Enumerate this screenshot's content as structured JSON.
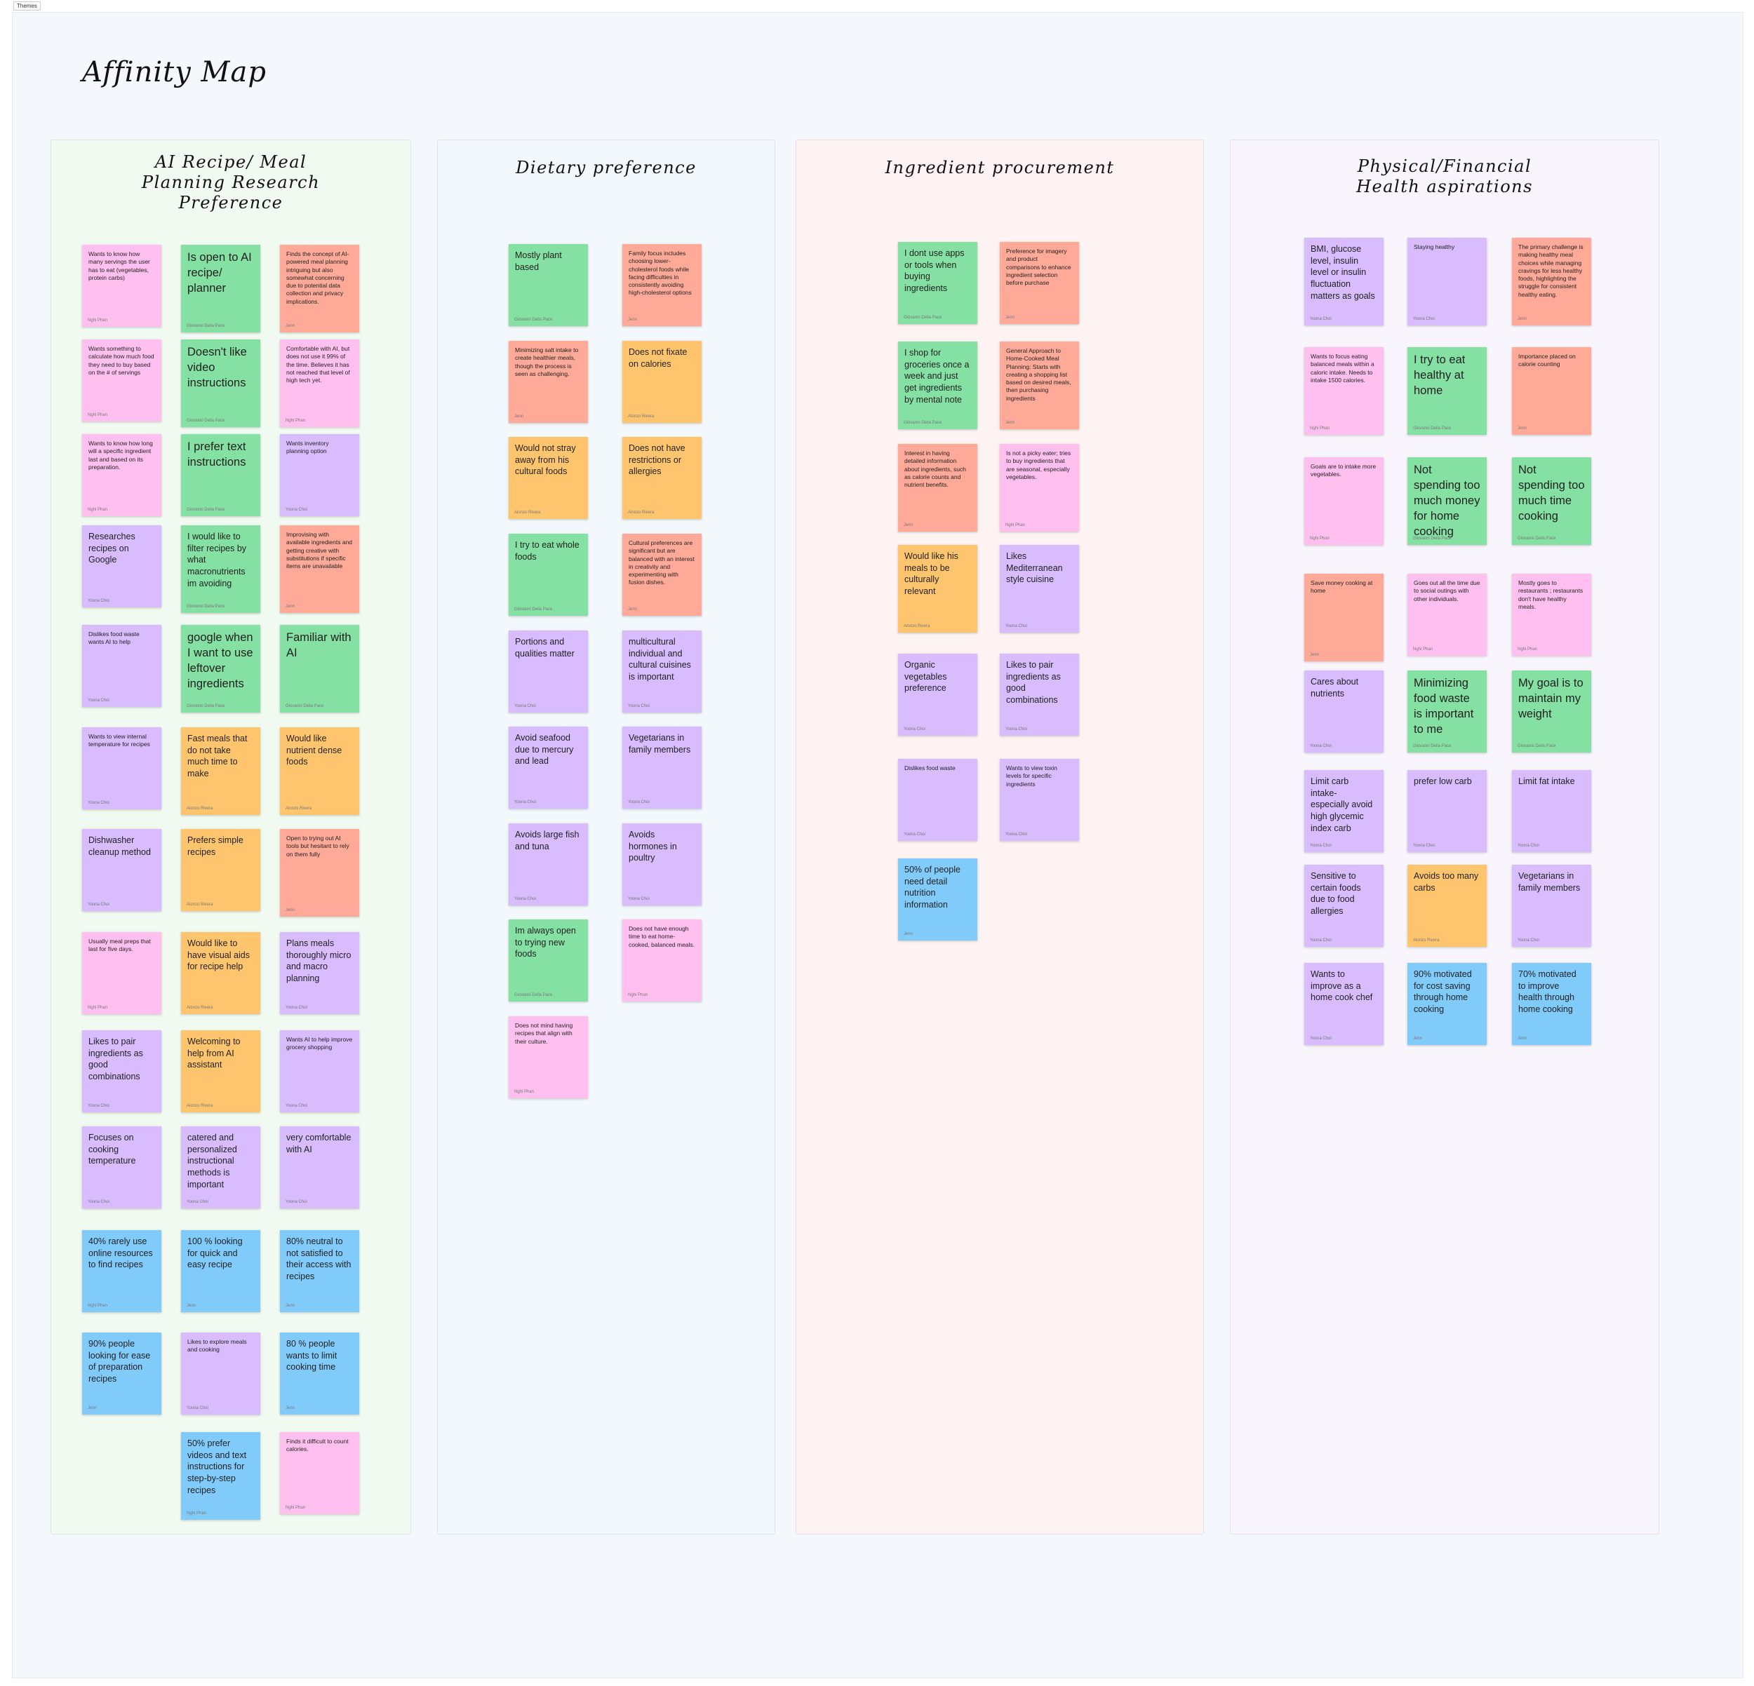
{
  "frame_label": "Themes",
  "page_title": "Affinity Map",
  "colors": {
    "pink": "#ffc0f0",
    "green": "#85e0a3",
    "purple": "#d9bcfd",
    "salmon": "#ffaa98",
    "orange": "#ffc56e",
    "blue": "#81cbfb"
  },
  "sections": [
    {
      "title": "AI Recipe/ Meal\nPlanning Research\nPreference",
      "notes": [
        {
          "text": "Wants to know how many servings the user has to eat (vegetables, protein carbs)",
          "author": "Nghi Phan",
          "color": "pink"
        },
        {
          "text": "Is open to AI recipe/ planner",
          "author": "Giovanni Della Pace",
          "color": "green"
        },
        {
          "text": "Finds the concept of AI-powered meal planning intriguing but also somewhat concerning due to potential data collection and privacy implications.",
          "author": "Jenn",
          "color": "salmon"
        },
        {
          "text": "Wants something to calculate how much food they need to buy based on the # of servings",
          "author": "Nghi Phan",
          "color": "pink"
        },
        {
          "text": "Doesn't like video instructions",
          "author": "Giovanni Della Pace",
          "color": "green"
        },
        {
          "text": "Comfortable with AI, but does not use it 99% of the time. Believes it has not reached that level of high tech yet.",
          "author": "Nghi Phan",
          "color": "pink"
        },
        {
          "text": "Wants to know how long will a specific ingredient last and based on its preparation.",
          "author": "Nghi Phan",
          "color": "pink"
        },
        {
          "text": "I prefer text instructions",
          "author": "Giovanni Della Pace",
          "color": "green"
        },
        {
          "text": "Wants inventory planning option",
          "author": "Yoona Choi",
          "color": "purple"
        },
        {
          "text": "Researches recipes on Google",
          "author": "Yoona Choi",
          "color": "purple"
        },
        {
          "text": "I would like to filter recipes by what macronutrients im avoiding",
          "author": "Giovanni Della Pace",
          "color": "green"
        },
        {
          "text": "Improvising with available ingredients and getting creative with substitutions if specific items are unavailable",
          "author": "Jenn",
          "color": "salmon"
        },
        {
          "text": "Dislikes food waste wants AI to help",
          "author": "Yoona Choi",
          "color": "purple"
        },
        {
          "text": "google  when I want to use leftover ingredients",
          "author": "Giovanni Della Pace",
          "color": "green"
        },
        {
          "text": "Familiar with AI",
          "author": "Giovanni Della Pace",
          "color": "green"
        },
        {
          "text": "Wants to view internal temperature for recipes",
          "author": "Yoona Choi",
          "color": "purple"
        },
        {
          "text": "Fast meals that do not take much time to make",
          "author": "Alonzo Rivera",
          "color": "orange"
        },
        {
          "text": "Would like nutrient dense foods",
          "author": "Alonzo Rivera",
          "color": "orange"
        },
        {
          "text": "Dishwasher cleanup method",
          "author": "Yoona Choi",
          "color": "purple"
        },
        {
          "text": "Prefers simple recipes",
          "author": "Alonzo Rivera",
          "color": "orange"
        },
        {
          "text": "Open to trying out  AI tools but hesitant to rely on them fully",
          "author": "Jenn",
          "color": "salmon"
        },
        {
          "text": "Usually meal preps that last for five days.",
          "author": "Nghi Phan",
          "color": "pink"
        },
        {
          "text": "Would like to have visual aids for recipe help",
          "author": "Alonzo Rivera",
          "color": "orange"
        },
        {
          "text": "Plans meals thoroughly micro and macro planning",
          "author": "Yoona Choi",
          "color": "purple"
        },
        {
          "text": "Likes to pair ingredients as good combinations",
          "author": "Yoona Choi",
          "color": "purple"
        },
        {
          "text": "Welcoming to help from AI assistant",
          "author": "Alonzo Rivera",
          "color": "orange"
        },
        {
          "text": "Wants AI to help improve grocery shopping",
          "author": "Yoona Choi",
          "color": "purple"
        },
        {
          "text": "Focuses on cooking temperature",
          "author": "Yoona Choi",
          "color": "purple"
        },
        {
          "text": "catered and personalized instructional methods is important",
          "author": "Yoona Choi",
          "color": "purple"
        },
        {
          "text": "very comfortable with AI",
          "author": "Yoona Choi",
          "color": "purple"
        },
        {
          "text": "40% rarely use online resources to find recipes",
          "author": "Nghi Phan",
          "color": "blue"
        },
        {
          "text": "100 % looking for quick and easy recipe",
          "author": "Jenn",
          "color": "blue"
        },
        {
          "text": "80% neutral to not satisfied  to their access with recipes",
          "author": "Jenn",
          "color": "blue"
        },
        {
          "text": "90% people looking for ease of preparation recipes",
          "author": "Jenn",
          "color": "blue"
        },
        {
          "text": "Likes to explore meals and cooking",
          "author": "Yoona Choi",
          "color": "purple"
        },
        {
          "text": "80 % people wants to limit cooking time",
          "author": "Jenn",
          "color": "blue"
        },
        {
          "text": "50% prefer videos and text instructions for step-by-step recipes",
          "author": "Nghi Phan",
          "color": "blue"
        },
        {
          "text": "Finds it difficult to count calories.",
          "author": "Nghi Phan",
          "color": "pink"
        }
      ]
    },
    {
      "title": "Dietary preference",
      "notes": [
        {
          "text": "Mostly plant based",
          "author": "Giovanni Della Pace",
          "color": "green"
        },
        {
          "text": "Family focus includes choosing lower-cholesterol foods while facing difficulties in consistently avoiding high-cholesterol options",
          "author": "Jenn",
          "color": "salmon"
        },
        {
          "text": "Minimizing salt intake to create healthier meals, though the process is seen as challenging.",
          "author": "Jenn",
          "color": "salmon"
        },
        {
          "text": "Does not fixate on calories",
          "author": "Alonzo Rivera",
          "color": "orange"
        },
        {
          "text": "Would not stray away from his cultural foods",
          "author": "Alonzo Rivera",
          "color": "orange"
        },
        {
          "text": "Does not have restrictions or allergies",
          "author": "Alonzo Rivera",
          "color": "orange"
        },
        {
          "text": "I try to eat whole foods",
          "author": "Giovanni Della Pace",
          "color": "green"
        },
        {
          "text": "Cultural preferences are significant but are balanced with an interest in creativity and experimenting with fusion dishes.",
          "author": "Jenn",
          "color": "salmon"
        },
        {
          "text": "Portions and qualities matter",
          "author": "Yoona Choi",
          "color": "purple"
        },
        {
          "text": "multicultural individual and cultural cuisines is important",
          "author": "Yoona Choi",
          "color": "purple"
        },
        {
          "text": "Avoid seafood due to mercury and lead",
          "author": "Yoona Choi",
          "color": "purple"
        },
        {
          "text": "Vegetarians in family members",
          "author": "Yoona Choi",
          "color": "purple"
        },
        {
          "text": "Avoids large fish and tuna",
          "author": "Yoona Choi",
          "color": "purple"
        },
        {
          "text": "Avoids hormones in poultry",
          "author": "Yoona Choi",
          "color": "purple"
        },
        {
          "text": "Im always open to trying new foods",
          "author": "Giovanni Della Pace",
          "color": "green"
        },
        {
          "text": "Does not have enough time to eat home-cooked, balanced meals.",
          "author": "Nghi Phan",
          "color": "pink"
        },
        {
          "text": "Does not mind having recipes that align with their culture.",
          "author": "Nghi Phan",
          "color": "pink"
        }
      ]
    },
    {
      "title": "Ingredient procurement",
      "notes": [
        {
          "text": "I dont use apps or tools when buying ingredients",
          "author": "Giovanni Della Pace",
          "color": "green"
        },
        {
          "text": "Preference for imagery and product comparisons to enhance ingredient selection before purchase",
          "author": "Jenn",
          "color": "salmon"
        },
        {
          "text": "I shop for groceries once a week and just get ingredients by mental note",
          "author": "Giovanni Della Pace",
          "color": "green"
        },
        {
          "text": "General Approach to Home-Cooked Meal Planning: Starts with creating a shopping list based on desired meals, then purchasing ingredients",
          "author": "Jenn",
          "color": "salmon"
        },
        {
          "text": "Interest in having detailed information about ingredients, such as calorie counts and nutrient benefits.",
          "author": "Jenn",
          "color": "salmon"
        },
        {
          "text": "Is not a picky eater; tries to buy ingredients that are seasonal, especially vegetables.",
          "author": "Nghi Phan",
          "color": "pink"
        },
        {
          "text": "Would like his meals to be culturally relevant",
          "author": "Alonzo Rivera",
          "color": "orange"
        },
        {
          "text": "Likes Mediterranean style cuisine",
          "author": "Yoona Choi",
          "color": "purple"
        },
        {
          "text": "Organic vegetables preference",
          "author": "Yoona Choi",
          "color": "purple"
        },
        {
          "text": "Likes to pair ingredients as good combinations",
          "author": "Yoona Choi",
          "color": "purple"
        },
        {
          "text": "Dislikes food waste",
          "author": "Yoona Choi",
          "color": "purple"
        },
        {
          "text": "Wants to view toxin levels for specific ingredients",
          "author": "Yoona Choi",
          "color": "purple"
        },
        {
          "text": "50% of people need detail nutrition information",
          "author": "Jenn",
          "color": "blue"
        }
      ]
    },
    {
      "title": "Physical/Financial\nHealth aspirations",
      "notes": [
        {
          "text": "BMI, glucose level, insulin level or insulin fluctuation matters as goals",
          "author": "Yoona Choi",
          "color": "purple"
        },
        {
          "text": "Staying healthy",
          "author": "Yoona Choi",
          "color": "purple"
        },
        {
          "text": "The primary challenge is making healthy meal choices while managing cravings for less healthy foods, highlighting the struggle for consistent healthy eating.",
          "author": "Jenn",
          "color": "salmon"
        },
        {
          "text": "Wants to focus eating balanced meals within a caloric intake. Needs to intake 1500 calories.",
          "author": "Nghi Phan",
          "color": "pink"
        },
        {
          "text": "I try to eat healthy at home",
          "author": "Giovanni Della Pace",
          "color": "green"
        },
        {
          "text": "Importance placed on calorie counting",
          "author": "Jenn",
          "color": "salmon"
        },
        {
          "text": "Goals are to intake more vegetables.",
          "author": "Nghi Phan",
          "color": "pink"
        },
        {
          "text": "Not spending too much money for home cooking",
          "author": "Giovanni Della Pace",
          "color": "green"
        },
        {
          "text": "Not spending too much time cooking",
          "author": "Giovanni Della Pace",
          "color": "green"
        },
        {
          "text": "Save money cooking at home",
          "author": "Jenn",
          "color": "salmon"
        },
        {
          "text": "Goes out all the time due to social outings with other individuals.",
          "author": "Nghi Phan",
          "color": "pink"
        },
        {
          "text": "Mostly goes to restaurants ; restaurants don't have healthy meals.",
          "author": "Nghi Phan",
          "color": "pink"
        },
        {
          "text": "Cares about nutrients",
          "author": "Yoona Choi",
          "color": "purple"
        },
        {
          "text": "Minimizing food waste is important to me",
          "author": "Giovanni Della Pace",
          "color": "green"
        },
        {
          "text": "My goal is to maintain my weight",
          "author": "Giovanni Della Pace",
          "color": "green"
        },
        {
          "text": "Limit carb intake- especially avoid high glycemic index carb",
          "author": "Yoona Choi",
          "color": "purple"
        },
        {
          "text": "prefer low carb",
          "author": "Yoona Choi",
          "color": "purple"
        },
        {
          "text": "Limit fat intake",
          "author": "Yoona Choi",
          "color": "purple"
        },
        {
          "text": "Sensitive to certain foods due to food allergies",
          "author": "Yoona Choi",
          "color": "purple"
        },
        {
          "text": "Avoids too many carbs",
          "author": "Alonzo Rivera",
          "color": "orange"
        },
        {
          "text": "Vegetarians in family members",
          "author": "Yoona Choi",
          "color": "purple"
        },
        {
          "text": "Wants to improve as a home cook chef",
          "author": "Yoona Choi",
          "color": "purple"
        },
        {
          "text": "90% motivated for cost saving through home cooking",
          "author": "Jenn",
          "color": "blue"
        },
        {
          "text": "70% motivated to improve health through home cooking",
          "author": "Jenn",
          "color": "blue"
        }
      ]
    }
  ]
}
